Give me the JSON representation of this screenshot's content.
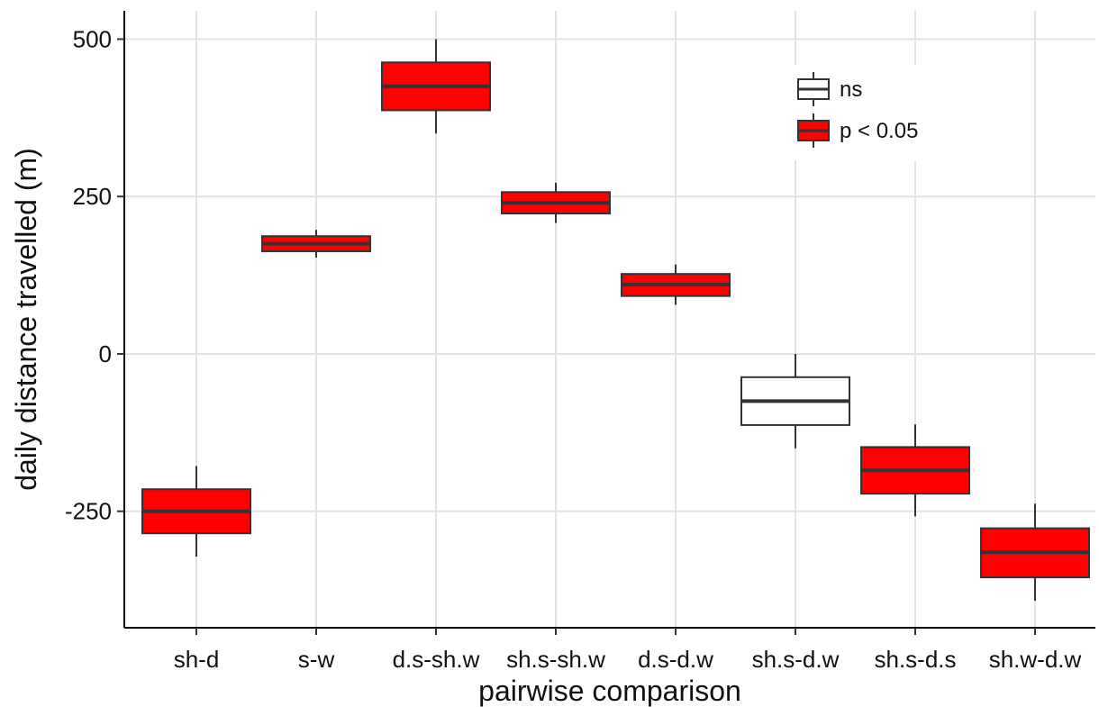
{
  "chart_data": {
    "type": "boxplot",
    "title": "",
    "xlabel": "pairwise comparison",
    "ylabel": "daily distance travelled (m)",
    "ylim": [
      -435,
      545
    ],
    "yticks": [
      -250,
      0,
      250,
      500
    ],
    "ytick_labels": [
      "-250",
      "0",
      "250",
      "500"
    ],
    "grid": true,
    "legend": {
      "placement": "top-right",
      "entries": [
        {
          "key": "ns",
          "label": "ns",
          "fill": "#ffffff"
        },
        {
          "key": "sig",
          "label": "p < 0.05",
          "fill": "#ff0000"
        }
      ]
    },
    "categories": [
      "sh-d",
      "s-w",
      "d.s-sh.w",
      "sh.s-sh.w",
      "d.s-d.w",
      "sh.s-d.w",
      "sh.s-d.s",
      "sh.w-d.w"
    ],
    "boxes": [
      {
        "category": "sh-d",
        "min": -322,
        "q1": -285,
        "median": -250,
        "q3": -215,
        "max": -178,
        "group": "sig"
      },
      {
        "category": "s-w",
        "min": 153,
        "q1": 163,
        "median": 175,
        "q3": 187,
        "max": 197,
        "group": "sig"
      },
      {
        "category": "d.s-sh.w",
        "min": 350,
        "q1": 387,
        "median": 425,
        "q3": 463,
        "max": 500,
        "group": "sig"
      },
      {
        "category": "sh.s-sh.w",
        "min": 208,
        "q1": 223,
        "median": 240,
        "q3": 257,
        "max": 272,
        "group": "sig"
      },
      {
        "category": "d.s-d.w",
        "min": 78,
        "q1": 92,
        "median": 110,
        "q3": 127,
        "max": 142,
        "group": "sig"
      },
      {
        "category": "sh.s-d.w",
        "min": -150,
        "q1": -113,
        "median": -75,
        "q3": -37,
        "max": 0,
        "group": "ns"
      },
      {
        "category": "sh.s-d.s",
        "min": -258,
        "q1": -222,
        "median": -185,
        "q3": -148,
        "max": -112,
        "group": "sig"
      },
      {
        "category": "sh.w-d.w",
        "min": -392,
        "q1": -355,
        "median": -315,
        "q3": -277,
        "max": -238,
        "group": "sig"
      }
    ]
  }
}
